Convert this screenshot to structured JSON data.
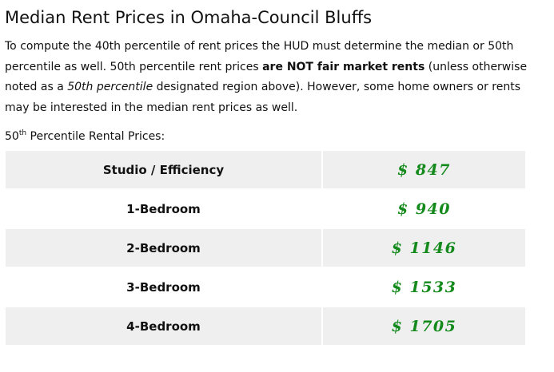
{
  "title": "Median Rent Prices in Omaha-Council Bluffs",
  "intro": {
    "part1": "To compute the 40th percentile of rent prices the HUD must determine the median or 50th percentile as well. 50th percentile rent prices ",
    "bold": "are NOT fair market rents",
    "part2": " (unless otherwise noted as a ",
    "italic": "50th percentile",
    "part3": " designated region above). However, some home owners or rents may be interested in the median rent prices as well."
  },
  "caption": {
    "number": "50",
    "sup": "th",
    "text": " Percentile Rental Prices:"
  },
  "rows": [
    {
      "label": "Studio / Efficiency",
      "price": "$ 847"
    },
    {
      "label": "1-Bedroom",
      "price": "$ 940"
    },
    {
      "label": "2-Bedroom",
      "price": "$ 1146"
    },
    {
      "label": "3-Bedroom",
      "price": "$ 1533"
    },
    {
      "label": "4-Bedroom",
      "price": "$ 1705"
    }
  ],
  "colors": {
    "price": "#138a1b",
    "row_shade": "#efefef"
  }
}
